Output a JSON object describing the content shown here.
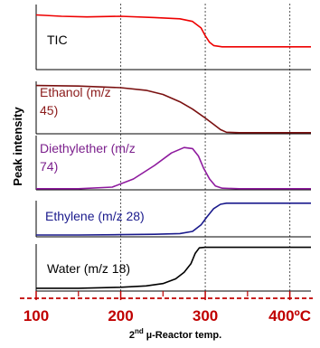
{
  "chart_data": {
    "type": "line",
    "layout": "stacked-panels",
    "xlabel_sup": "nd",
    "xlabel_prefix": "2",
    "xlabel_rest": " µ-Reactor temp.",
    "ylabel": "Peak intensity",
    "xlim": [
      100,
      425
    ],
    "xticks": [
      {
        "value": 100,
        "label": "100"
      },
      {
        "value": 200,
        "label": "200"
      },
      {
        "value": 300,
        "label": "300"
      },
      {
        "value": 400,
        "label": "400ºC"
      }
    ],
    "vlines": [
      200,
      300,
      400
    ],
    "tick_color": "#c00000",
    "series": [
      {
        "name": "TIC",
        "label_lines": [
          "TIC"
        ],
        "color": "#ee0000",
        "label_color": "#000000",
        "x": [
          100,
          130,
          160,
          200,
          240,
          270,
          285,
          295,
          300,
          305,
          310,
          320,
          340,
          380,
          425
        ],
        "y": [
          0.84,
          0.82,
          0.81,
          0.82,
          0.8,
          0.78,
          0.74,
          0.64,
          0.52,
          0.42,
          0.37,
          0.35,
          0.35,
          0.35,
          0.35
        ]
      },
      {
        "name": "Ethanol (m/z 45)",
        "label_lines": [
          "Ethanol  (m/z",
          "45)"
        ],
        "color": "#7a1010",
        "label_color": "#8b1a1a",
        "x": [
          100,
          150,
          200,
          230,
          250,
          270,
          285,
          300,
          310,
          318,
          325,
          340,
          425
        ],
        "y": [
          0.92,
          0.91,
          0.88,
          0.83,
          0.75,
          0.61,
          0.47,
          0.3,
          0.18,
          0.08,
          0.03,
          0.02,
          0.02
        ]
      },
      {
        "name": "Diethylether (m/z 74)",
        "label_lines": [
          "Diethylether (m/z",
          "74)"
        ],
        "color": "#8e1a9e",
        "label_color": "#7b1f8c",
        "x": [
          100,
          150,
          190,
          215,
          240,
          260,
          275,
          285,
          292,
          298,
          305,
          312,
          320,
          340,
          425
        ],
        "y": [
          0.02,
          0.02,
          0.05,
          0.2,
          0.45,
          0.68,
          0.78,
          0.76,
          0.62,
          0.4,
          0.2,
          0.07,
          0.03,
          0.02,
          0.02
        ]
      },
      {
        "name": "Ethylene (m/z 28)",
        "label_lines": [
          "Ethylene (m/z 28)"
        ],
        "color": "#1a1a8c",
        "label_color": "#1a1a8c",
        "x": [
          100,
          150,
          200,
          240,
          270,
          285,
          295,
          302,
          310,
          318,
          325,
          340,
          425
        ],
        "y": [
          0.05,
          0.05,
          0.06,
          0.07,
          0.09,
          0.15,
          0.33,
          0.55,
          0.78,
          0.9,
          0.93,
          0.93,
          0.93
        ]
      },
      {
        "name": "Water (m/z 18)",
        "label_lines": [
          "Water  (m/z 18)"
        ],
        "color": "#000000",
        "label_color": "#000000",
        "x": [
          100,
          150,
          200,
          230,
          250,
          265,
          275,
          283,
          288,
          293,
          300,
          320,
          425
        ],
        "y": [
          0.06,
          0.06,
          0.08,
          0.11,
          0.16,
          0.26,
          0.4,
          0.58,
          0.8,
          0.92,
          0.93,
          0.93,
          0.93
        ]
      }
    ],
    "grid": false,
    "legend": "none"
  }
}
